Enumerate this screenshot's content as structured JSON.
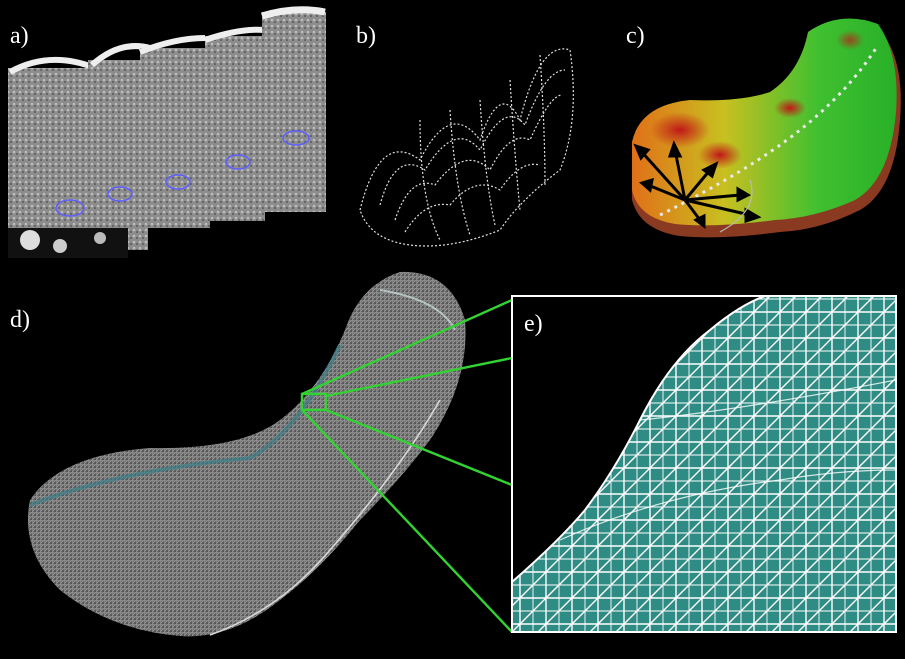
{
  "panels": {
    "a": {
      "label": "a)"
    },
    "b": {
      "label": "b)"
    },
    "c": {
      "label": "c)"
    },
    "d": {
      "label": "d)"
    },
    "e": {
      "label": "e)"
    }
  },
  "colors": {
    "background": "#000000",
    "zoom_lines": "#32d232",
    "mesh_fill": "#2e8b83",
    "mesh_lines": "#ffffff",
    "heat_red": "#c8201a",
    "heat_green": "#22c022"
  }
}
